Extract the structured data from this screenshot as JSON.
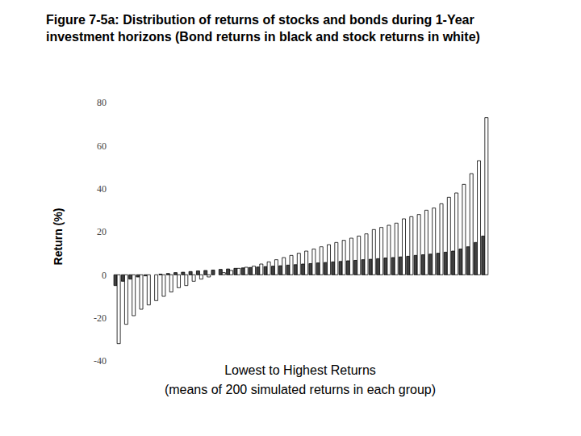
{
  "chart_data": {
    "type": "bar",
    "title": "Figure 7-5a: Distribution of returns of stocks and bonds during 1-Year investment horizons (Bond returns in black and stock returns in white)",
    "ylabel": "Return (%)",
    "xlabel": [
      "Lowest to Highest Returns",
      "(means of 200 simulated returns in each group)"
    ],
    "ylim": [
      -40,
      80
    ],
    "yticks": [
      -40,
      -20,
      0,
      20,
      40,
      60,
      80
    ],
    "grid": false,
    "tick_labels": "y",
    "series": [
      {
        "color": "#404040",
        "values": [
          -5,
          -3,
          -2,
          -1,
          -0.5,
          0,
          0.3,
          0.6,
          1,
          1.2,
          1.5,
          1.8,
          2,
          2.2,
          2.5,
          2.7,
          3,
          3.2,
          3.4,
          3.6,
          3.8,
          4,
          4.2,
          4.5,
          4.7,
          5,
          5.2,
          5.5,
          5.7,
          6,
          6.2,
          6.5,
          6.7,
          7,
          7.2,
          7.5,
          7.8,
          8,
          8.3,
          8.6,
          9,
          9.3,
          9.6,
          10,
          10.5,
          11,
          12,
          13,
          15,
          18
        ]
      },
      {
        "color": "#ffffff",
        "values": [
          -32,
          -23,
          -19,
          -16,
          -14,
          -12,
          -10,
          -8,
          -6,
          -5,
          -3,
          -2,
          -1,
          0,
          1,
          2,
          3,
          3.5,
          4,
          5,
          6,
          7,
          8,
          9,
          10,
          11,
          12,
          13,
          14,
          15,
          16,
          17,
          18,
          19,
          21,
          22,
          23,
          24,
          26,
          27,
          28,
          30,
          31,
          33,
          36,
          38,
          42,
          47,
          53,
          73
        ]
      }
    ]
  }
}
